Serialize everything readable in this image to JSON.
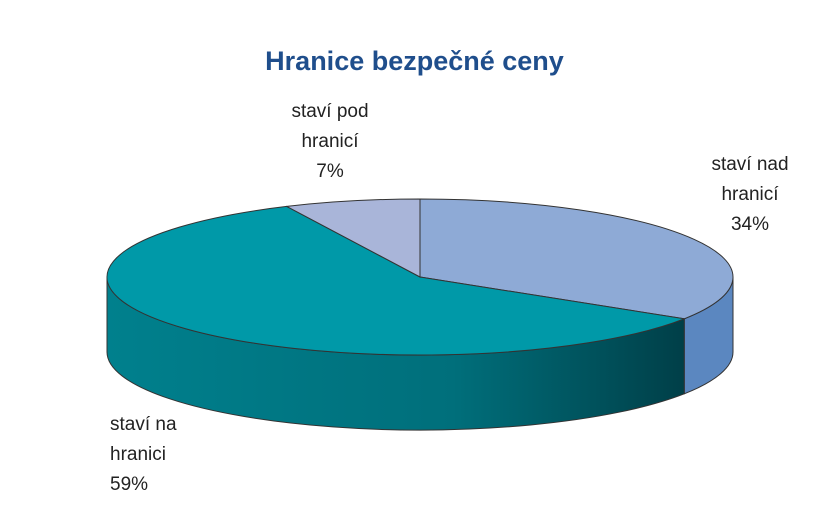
{
  "chart_data": {
    "type": "pie",
    "title": "Hranice bezpečné ceny",
    "categories": [
      "staví nad hranicí",
      "staví na hranici",
      "staví pod hranicí"
    ],
    "values": [
      34,
      59,
      7
    ],
    "value_labels": [
      "34%",
      "59%",
      "7%"
    ],
    "colors": [
      "#8eaad6",
      "#0099a8",
      "#a9b5d9"
    ]
  }
}
